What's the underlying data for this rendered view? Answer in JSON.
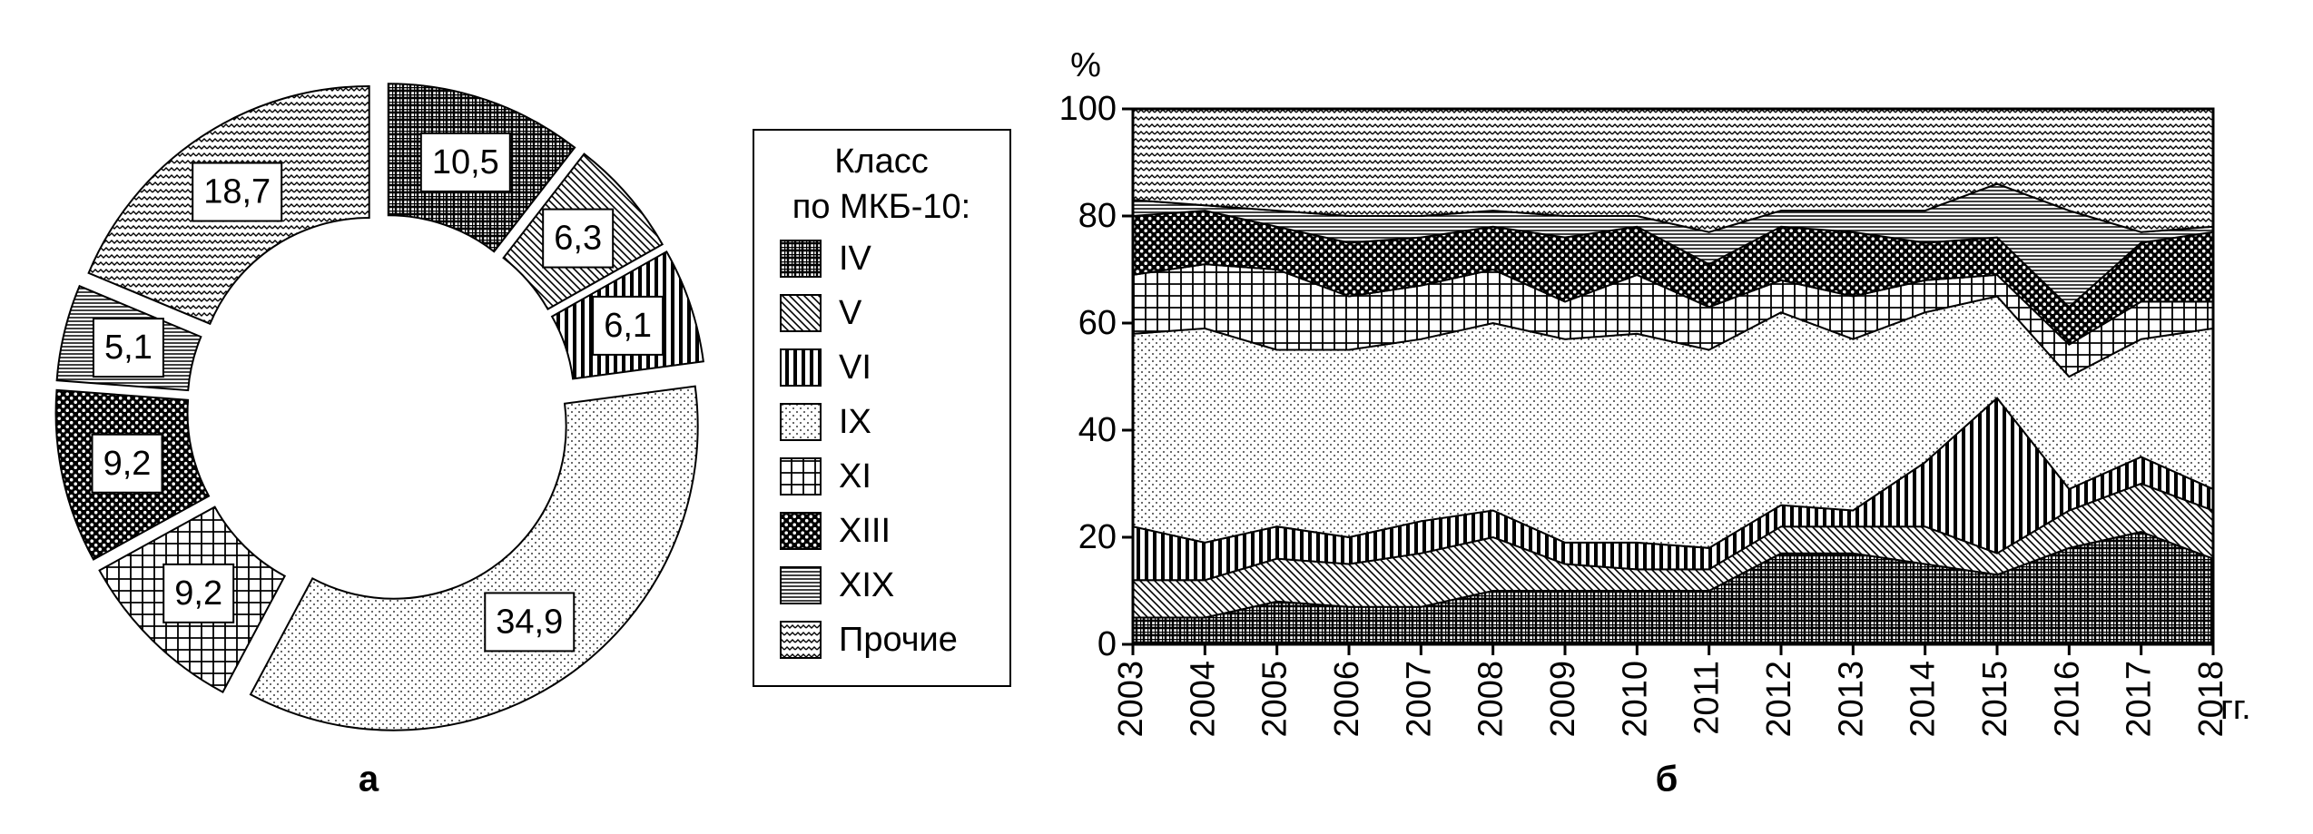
{
  "chart_data": [
    {
      "type": "pie",
      "caption": "а",
      "categories": [
        "IV",
        "V",
        "VI",
        "IX",
        "XI",
        "XIII",
        "XIX",
        "Прочие"
      ],
      "values": [
        10.5,
        6.3,
        6.1,
        34.9,
        9.2,
        9.2,
        5.1,
        18.7
      ],
      "value_labels": [
        "10,5",
        "6,3",
        "6,1",
        "34,9",
        "9,2",
        "9,2",
        "5,1",
        "18,7"
      ],
      "legend_title": [
        "Класс",
        "по МКБ-10:"
      ]
    },
    {
      "type": "area",
      "stacked": true,
      "caption": "б",
      "ylabel": "%",
      "xlabel": "гг.",
      "x": [
        2003,
        2004,
        2005,
        2006,
        2007,
        2008,
        2009,
        2010,
        2011,
        2012,
        2013,
        2014,
        2015,
        2016,
        2017,
        2018
      ],
      "xlim": [
        2003,
        2018
      ],
      "xticks": [
        2003,
        2004,
        2005,
        2006,
        2007,
        2008,
        2009,
        2010,
        2011,
        2012,
        2013,
        2014,
        2015,
        2016,
        2017,
        2018
      ],
      "ylim": [
        0,
        100
      ],
      "yticks": [
        0,
        20,
        40,
        60,
        80,
        100
      ],
      "series": [
        {
          "values": [
            5,
            5,
            8,
            7,
            7,
            10,
            10,
            10,
            10,
            17,
            17,
            15,
            13,
            18,
            21,
            16
          ]
        },
        {
          "values": [
            7,
            7,
            8,
            8,
            10,
            10,
            5,
            4,
            4,
            5,
            5,
            7,
            4,
            7,
            9,
            9
          ]
        },
        {
          "values": [
            10,
            7,
            6,
            5,
            6,
            5,
            4,
            5,
            4,
            4,
            3,
            12,
            29,
            4,
            5,
            4
          ]
        },
        {
          "values": [
            36,
            40,
            33,
            35,
            34,
            35,
            38,
            39,
            37,
            36,
            32,
            28,
            19,
            21,
            22,
            30
          ]
        },
        {
          "values": [
            11,
            12,
            15,
            10,
            10,
            10,
            7,
            11,
            8,
            6,
            8,
            6,
            4,
            6,
            7,
            5
          ]
        },
        {
          "values": [
            11,
            10,
            8,
            10,
            9,
            8,
            12,
            9,
            8,
            10,
            12,
            7,
            7,
            7,
            11,
            13
          ]
        },
        {
          "values": [
            3,
            1,
            3,
            5,
            4,
            3,
            4,
            2,
            6,
            3,
            4,
            6,
            10,
            18,
            2,
            1
          ]
        },
        {
          "values": [
            17,
            18,
            19,
            20,
            20,
            19,
            20,
            20,
            23,
            19,
            19,
            19,
            14,
            19,
            23,
            22
          ]
        }
      ]
    }
  ]
}
